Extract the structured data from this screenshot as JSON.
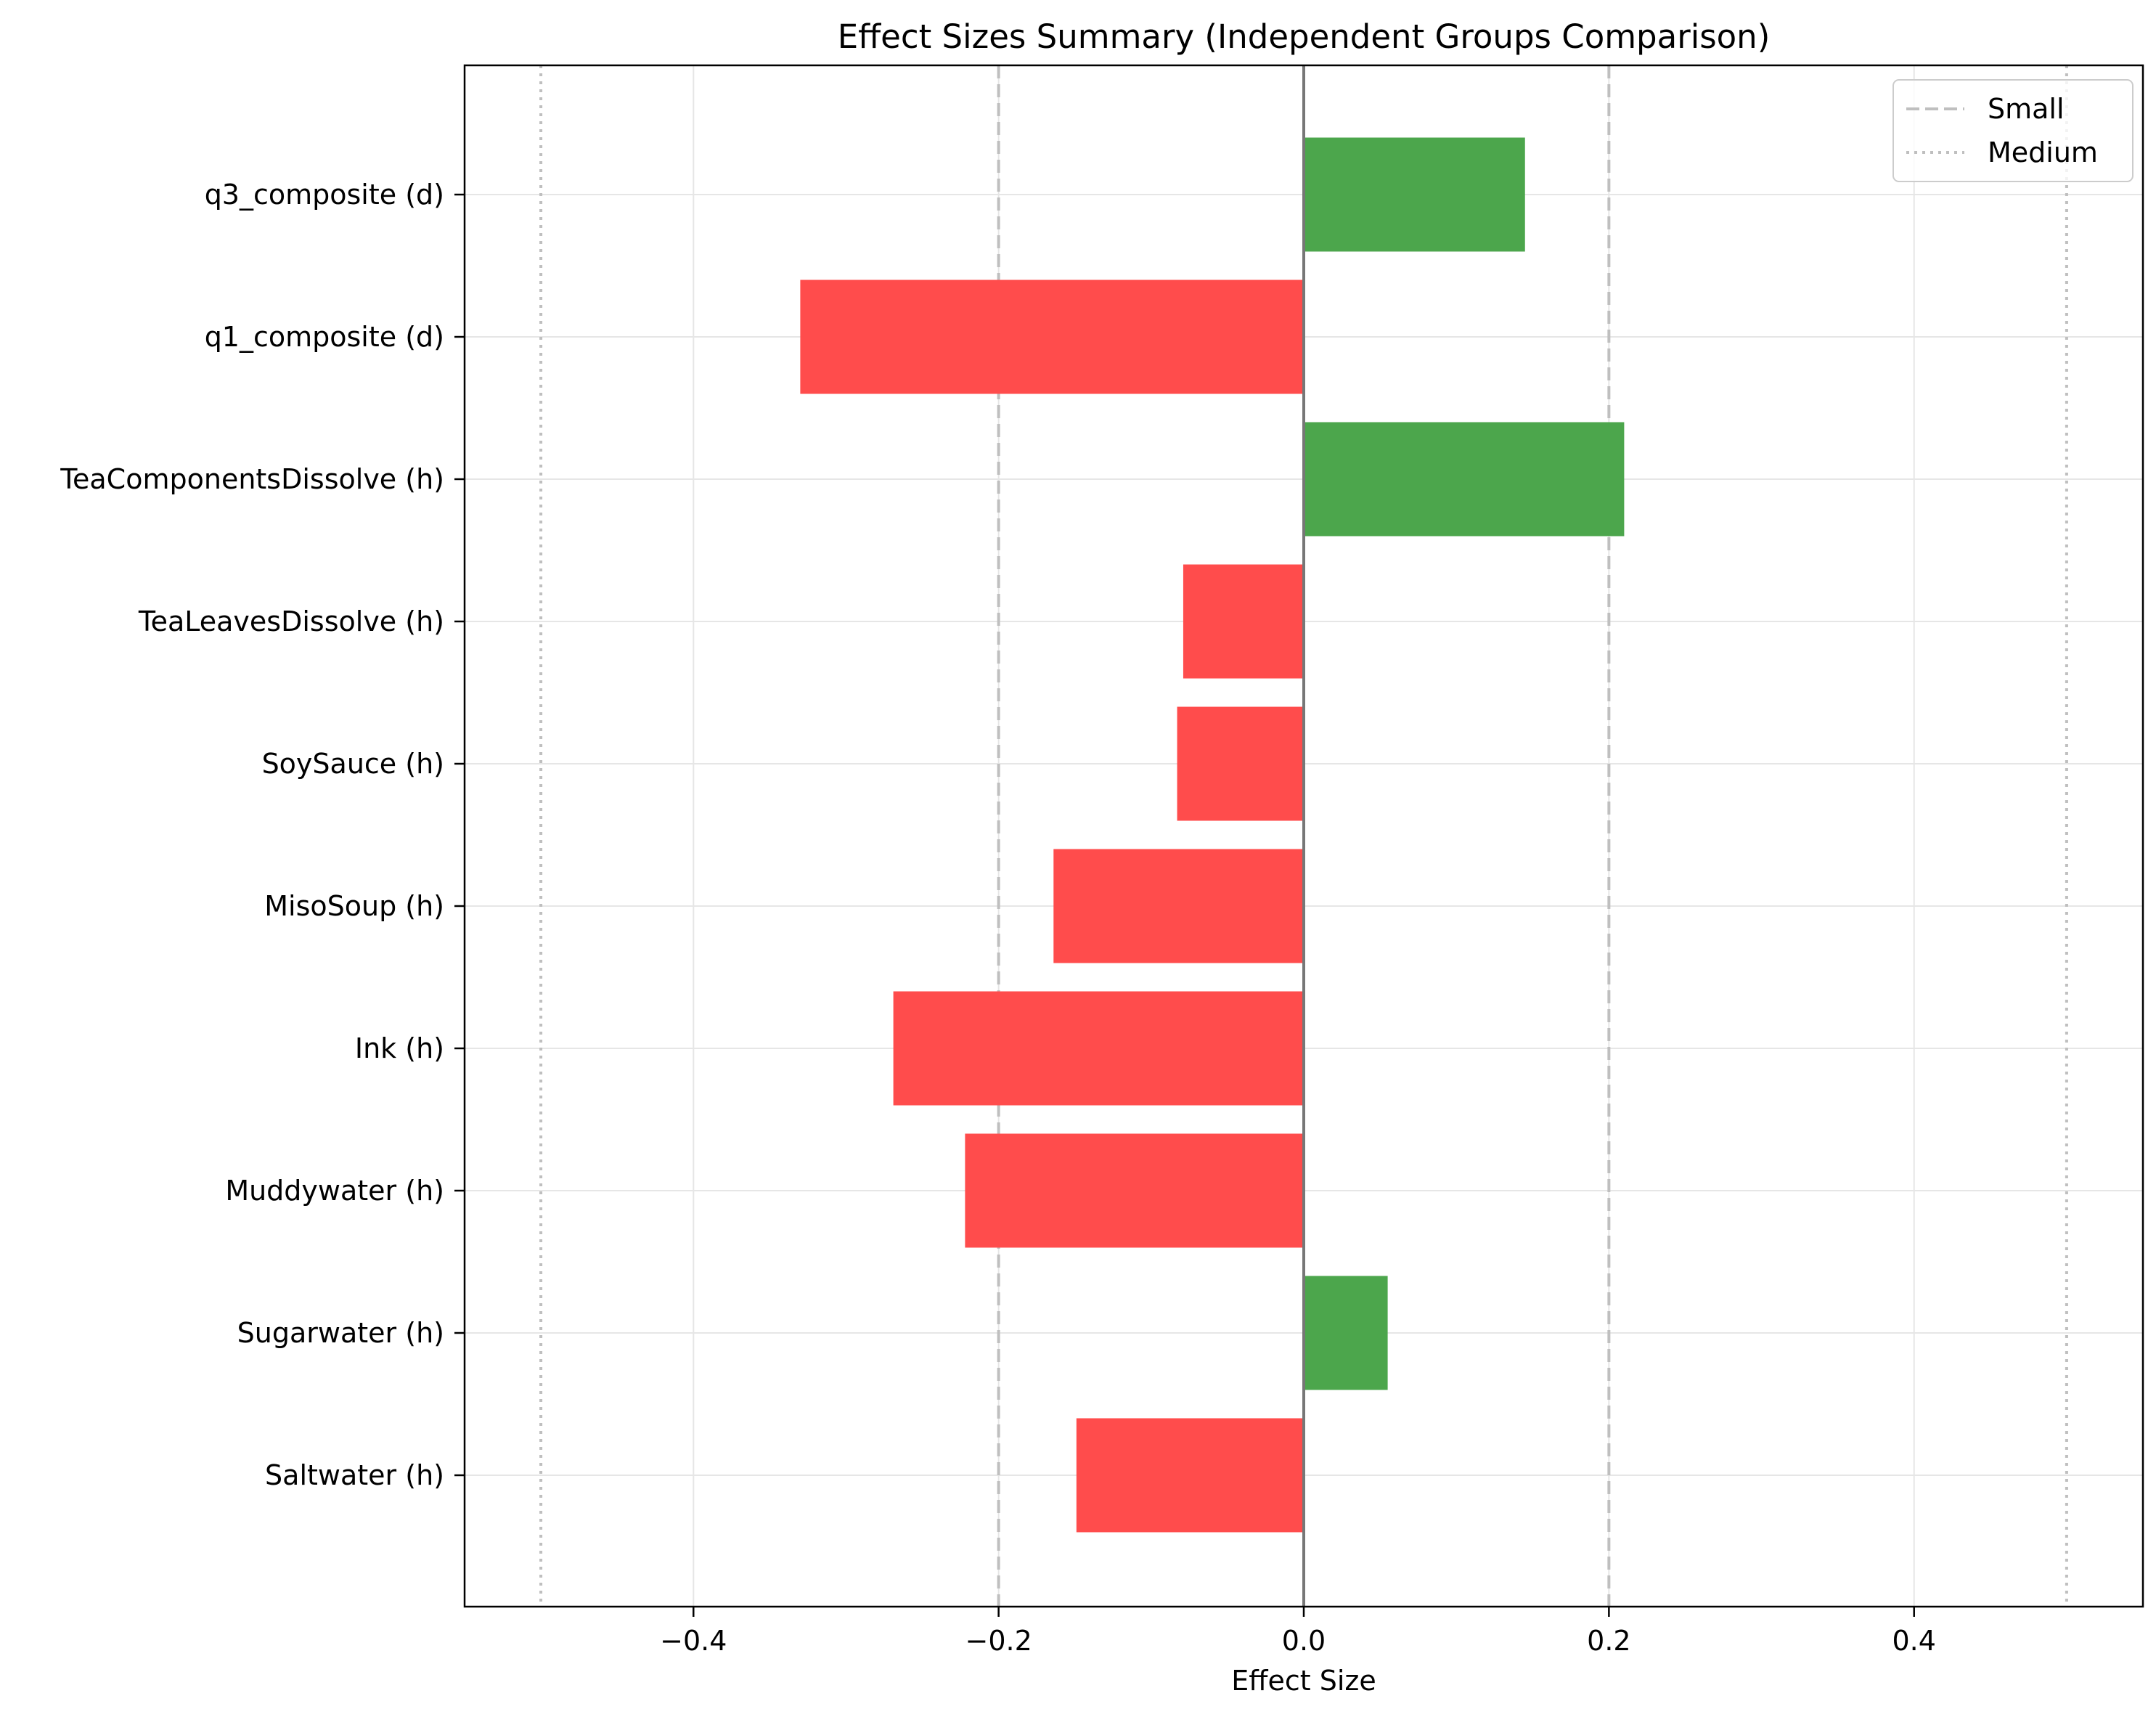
{
  "chart_data": {
    "type": "bar",
    "orientation": "horizontal",
    "title": "Effect Sizes Summary (Independent Groups Comparison)",
    "xlabel": "Effect Size",
    "ylabel": "",
    "xlim": [
      -0.55,
      0.55
    ],
    "xticks": [
      -0.4,
      -0.2,
      0.0,
      0.2,
      0.4
    ],
    "xtick_labels": [
      "−0.4",
      "−0.2",
      "0.0",
      "0.2",
      "0.4"
    ],
    "grid": true,
    "categories": [
      "q3_composite (d)",
      "q1_composite (d)",
      "TeaComponentsDissolve (h)",
      "TeaLeavesDissolve (h)",
      "SoySauce (h)",
      "MisoSoup (h)",
      "Ink (h)",
      "Muddywater (h)",
      "Sugarwater (h)",
      "Saltwater (h)"
    ],
    "values": [
      0.145,
      -0.33,
      0.21,
      -0.079,
      -0.083,
      -0.164,
      -0.269,
      -0.222,
      0.055,
      -0.149
    ],
    "colors": {
      "positive": "#4ca64c",
      "negative": "#ff4c4c",
      "zero_line": "#777777",
      "threshold_line": "#bfbfbf",
      "grid": "#e6e6e6"
    },
    "reference_lines": [
      {
        "style": "dashed",
        "values": [
          -0.2,
          0.2
        ],
        "legend": "Small"
      },
      {
        "style": "dotted",
        "values": [
          -0.5,
          0.5
        ],
        "legend": "Medium"
      }
    ],
    "legend": {
      "position": "top-right",
      "entries": [
        "Small",
        "Medium"
      ]
    }
  }
}
